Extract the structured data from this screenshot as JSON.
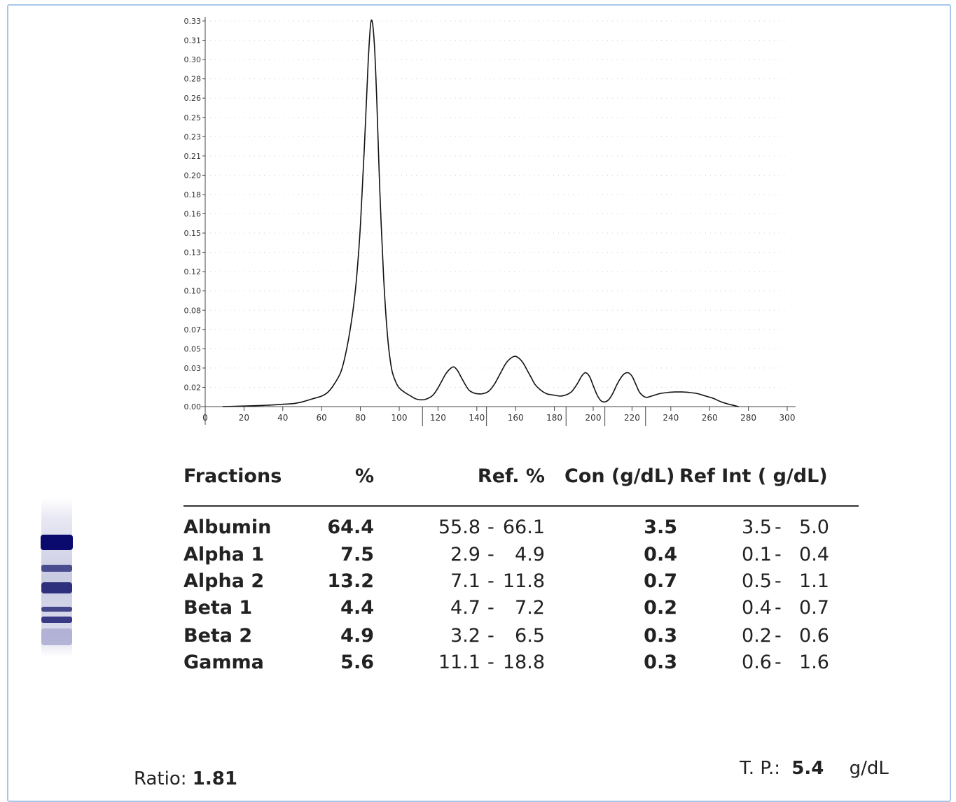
{
  "chart_data": {
    "type": "line",
    "title": "",
    "xlabel": "",
    "ylabel": "",
    "xlim": [
      0,
      300
    ],
    "ylim": [
      0,
      0.33
    ],
    "x_ticks": [
      0,
      20,
      40,
      60,
      80,
      100,
      120,
      140,
      160,
      180,
      200,
      220,
      240,
      260,
      280,
      300
    ],
    "y_ticks": [
      "0.00",
      "0.02",
      "0.03",
      "0.05",
      "0.07",
      "0.08",
      "0.10",
      "0.12",
      "0.13",
      "0.15",
      "0.16",
      "0.18",
      "0.20",
      "0.21",
      "0.23",
      "0.25",
      "0.26",
      "0.28",
      "0.30",
      "0.31",
      "0.33"
    ],
    "grid": true,
    "fraction_boundaries": [
      112,
      145,
      186,
      206,
      227
    ],
    "series": [
      {
        "x": [
          9,
          20,
          30,
          40,
          45,
          50,
          55,
          60,
          63,
          66,
          70,
          73,
          76,
          78,
          80,
          82,
          84,
          85.5,
          87,
          88.5,
          90,
          92,
          94,
          96,
          98,
          100,
          103,
          106,
          108,
          110,
          113,
          116,
          118,
          120,
          122,
          124,
          126,
          128,
          130,
          132,
          134,
          136,
          138,
          140,
          143,
          146,
          149,
          152,
          155,
          158,
          160,
          162,
          164,
          166,
          168,
          170,
          173,
          176,
          179,
          183,
          186,
          189,
          192,
          194,
          196,
          198,
          200,
          202,
          204,
          206,
          208,
          210,
          212,
          214,
          216,
          218,
          220,
          222,
          224,
          227,
          230,
          234,
          238,
          242,
          246,
          250,
          254,
          258,
          262,
          266,
          270,
          275
        ],
        "values": [
          0.0,
          0.0005,
          0.001,
          0.002,
          0.0025,
          0.004,
          0.0065,
          0.009,
          0.012,
          0.018,
          0.03,
          0.05,
          0.08,
          0.11,
          0.155,
          0.22,
          0.295,
          0.33,
          0.315,
          0.26,
          0.185,
          0.11,
          0.06,
          0.033,
          0.022,
          0.016,
          0.012,
          0.009,
          0.007,
          0.006,
          0.006,
          0.008,
          0.011,
          0.016,
          0.022,
          0.028,
          0.032,
          0.034,
          0.031,
          0.025,
          0.019,
          0.014,
          0.012,
          0.011,
          0.011,
          0.013,
          0.019,
          0.028,
          0.037,
          0.042,
          0.043,
          0.041,
          0.037,
          0.031,
          0.025,
          0.019,
          0.014,
          0.011,
          0.01,
          0.009,
          0.01,
          0.013,
          0.02,
          0.026,
          0.029,
          0.026,
          0.018,
          0.01,
          0.005,
          0.004,
          0.006,
          0.011,
          0.018,
          0.024,
          0.028,
          0.029,
          0.026,
          0.019,
          0.012,
          0.008,
          0.009,
          0.011,
          0.012,
          0.0125,
          0.0125,
          0.012,
          0.011,
          0.009,
          0.007,
          0.004,
          0.002,
          0.0
        ]
      }
    ]
  },
  "table": {
    "headers": {
      "fractions": "Fractions",
      "percent": "%",
      "ref_percent": "Ref. %",
      "con": "Con (g/dL)",
      "ref_int": "Ref Int ( g/dL)"
    },
    "rows": [
      {
        "name": "Albumin",
        "pct": "64.4",
        "ref_lo": "55.8",
        "ref_hi": "66.1",
        "con": "3.5",
        "int_lo": "3.5",
        "int_hi": "5.0"
      },
      {
        "name": "Alpha 1",
        "pct": "7.5",
        "ref_lo": "2.9",
        "ref_hi": "4.9",
        "con": "0.4",
        "int_lo": "0.1",
        "int_hi": "0.4"
      },
      {
        "name": "Alpha 2",
        "pct": "13.2",
        "ref_lo": "7.1",
        "ref_hi": "11.8",
        "con": "0.7",
        "int_lo": "0.5",
        "int_hi": "1.1"
      },
      {
        "name": "Beta 1",
        "pct": "4.4",
        "ref_lo": "4.7",
        "ref_hi": "7.2",
        "con": "0.2",
        "int_lo": "0.4",
        "int_hi": "0.7"
      },
      {
        "name": "Beta 2",
        "pct": "4.9",
        "ref_lo": "3.2",
        "ref_hi": "6.5",
        "con": "0.3",
        "int_lo": "0.2",
        "int_hi": "0.6"
      },
      {
        "name": "Gamma",
        "pct": "5.6",
        "ref_lo": "11.1",
        "ref_hi": "18.8",
        "con": "0.3",
        "int_lo": "0.6",
        "int_hi": "1.6"
      }
    ]
  },
  "footer": {
    "ratio_label": "Ratio:",
    "ratio_value": "1.81",
    "tp_label": "T. P.:",
    "tp_value": "5.4",
    "tp_unit": "g/dL"
  },
  "colors": {
    "gel_dark": "#0a0a6e",
    "gel_light": "#d8d9ec",
    "frame": "#a9c7e8"
  }
}
